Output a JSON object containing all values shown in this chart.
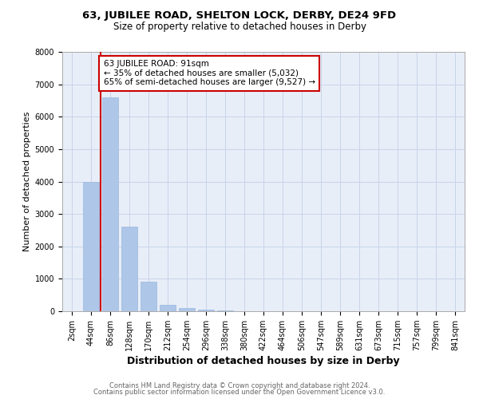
{
  "title1": "63, JUBILEE ROAD, SHELTON LOCK, DERBY, DE24 9FD",
  "title2": "Size of property relative to detached houses in Derby",
  "xlabel": "Distribution of detached houses by size in Derby",
  "ylabel": "Number of detached properties",
  "categories": [
    "2sqm",
    "44sqm",
    "86sqm",
    "128sqm",
    "170sqm",
    "212sqm",
    "254sqm",
    "296sqm",
    "338sqm",
    "380sqm",
    "422sqm",
    "464sqm",
    "506sqm",
    "547sqm",
    "589sqm",
    "631sqm",
    "673sqm",
    "715sqm",
    "757sqm",
    "799sqm",
    "841sqm"
  ],
  "values": [
    0,
    4000,
    6600,
    2600,
    900,
    200,
    100,
    50,
    20,
    0,
    0,
    0,
    0,
    0,
    0,
    0,
    0,
    0,
    0,
    0,
    0
  ],
  "bar_color": "#aec6e8",
  "bar_edge_color": "#9ab8de",
  "ylim": [
    0,
    8000
  ],
  "yticks": [
    0,
    1000,
    2000,
    3000,
    4000,
    5000,
    6000,
    7000,
    8000
  ],
  "vline_x": 1.5,
  "vline_color": "#cc0000",
  "annotation_text": "63 JUBILEE ROAD: 91sqm\n← 35% of detached houses are smaller (5,032)\n65% of semi-detached houses are larger (9,527) →",
  "annotation_box_color": "#ffffff",
  "annotation_box_edge": "#cc0000",
  "grid_color": "#c8d4e8",
  "figure_background": "#ffffff",
  "plot_background": "#e8eef8",
  "footer_line1": "Contains HM Land Registry data © Crown copyright and database right 2024.",
  "footer_line2": "Contains public sector information licensed under the Open Government Licence v3.0.",
  "title1_fontsize": 9.5,
  "title2_fontsize": 8.5,
  "xlabel_fontsize": 9,
  "ylabel_fontsize": 8,
  "tick_fontsize": 7,
  "annotation_fontsize": 7.5,
  "footer_fontsize": 6
}
